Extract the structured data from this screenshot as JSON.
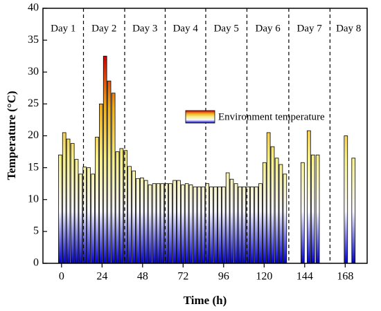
{
  "chart_data": {
    "type": "bar",
    "x_label": "Time (h)",
    "y_label": "Temperature (°C)",
    "legend": "Environment temperature",
    "x": [
      -0.8,
      1.6,
      4.0,
      6.5,
      8.9,
      11.3,
      13.7,
      16.1,
      18.6,
      21.0,
      23.4,
      25.8,
      28.2,
      30.7,
      33.1,
      35.5,
      37.9,
      40.3,
      42.8,
      45.2,
      47.6,
      50.0,
      52.4,
      54.9,
      57.3,
      59.7,
      62.1,
      64.5,
      67.0,
      69.4,
      71.8,
      74.2,
      76.6,
      79.1,
      81.5,
      83.9,
      86.3,
      88.7,
      91.2,
      93.6,
      96.0,
      98.4,
      100.8,
      103.3,
      105.7,
      108.1,
      110.5,
      112.9,
      115.4,
      117.8,
      120.2,
      122.6,
      125.0,
      127.5,
      129.9,
      132.3,
      142.8,
      146.5,
      148.9,
      151.7,
      168.4,
      172.9
    ],
    "values": [
      17,
      20.5,
      19.5,
      18.8,
      16.3,
      14,
      15.1,
      15,
      14,
      19.8,
      25,
      32.5,
      28.6,
      26.7,
      17.5,
      18,
      17.7,
      15.2,
      14.5,
      13.3,
      13.4,
      13,
      12.3,
      12.5,
      12.5,
      12.5,
      12.5,
      12.5,
      13,
      13,
      12.3,
      12.5,
      12.3,
      12,
      12,
      12,
      12.5,
      12,
      12,
      12,
      12,
      14.2,
      13.2,
      12.5,
      12,
      12,
      12,
      12,
      12,
      12.5,
      15.8,
      20.5,
      18.3,
      16.5,
      15.5,
      14,
      15.8,
      20.8,
      17,
      17,
      20,
      16.5
    ],
    "colormap": [
      "#0000c8",
      "#f6f6ff",
      "#f6f08c",
      "#f0b020",
      "#d00000"
    ],
    "color_range": [
      0,
      32.5
    ],
    "day_labels": [
      "Day 1",
      "Day 2",
      "Day 3",
      "Day 4",
      "Day 5",
      "Day 6",
      "Day 7",
      "Day 8"
    ],
    "day_boundaries": [
      13.0,
      37.4,
      61.4,
      85.4,
      109.8,
      134.6,
      159.0
    ],
    "xlim": [
      -11,
      181
    ],
    "xticks": [
      0,
      24,
      48,
      72,
      96,
      120,
      144,
      168
    ],
    "ylim": [
      0,
      40
    ],
    "yticks": [
      0,
      5,
      10,
      15,
      20,
      25,
      30,
      35,
      40
    ]
  }
}
